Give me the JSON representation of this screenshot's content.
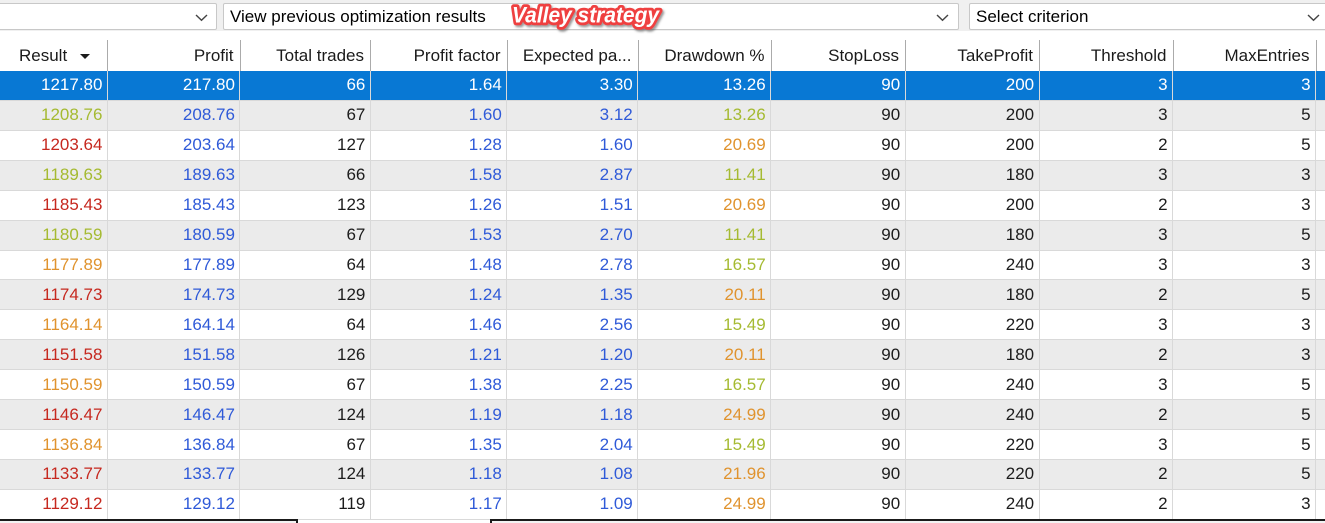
{
  "toolbar": {
    "combo_pass": {
      "value": ""
    },
    "combo_view": {
      "value": "View previous optimization results"
    },
    "combo_criterion": {
      "value": "Select criterion"
    }
  },
  "annotation": {
    "text": "Valley strategy",
    "fill": "#ffffff",
    "outline": "#ef4040"
  },
  "table": {
    "columns": [
      {
        "label": "Result",
        "sorted": "desc"
      },
      {
        "label": "Profit"
      },
      {
        "label": "Total trades"
      },
      {
        "label": "Profit factor"
      },
      {
        "label": "Expected pa..."
      },
      {
        "label": "Drawdown %"
      },
      {
        "label": "StopLoss"
      },
      {
        "label": "TakeProfit"
      },
      {
        "label": "Threshold"
      },
      {
        "label": "MaxEntries"
      },
      {
        "label": ""
      }
    ],
    "rows": [
      {
        "selected": true,
        "values": [
          "1217.80",
          "217.80",
          "66",
          "1.64",
          "3.30",
          "13.26",
          "90",
          "200",
          "3",
          "3"
        ],
        "result_color": "white",
        "drawdown_color": "white"
      },
      {
        "selected": false,
        "values": [
          "1208.76",
          "208.76",
          "67",
          "1.60",
          "3.12",
          "13.26",
          "90",
          "200",
          "3",
          "5"
        ],
        "result_color": "green",
        "drawdown_color": "green"
      },
      {
        "selected": false,
        "values": [
          "1203.64",
          "203.64",
          "127",
          "1.28",
          "1.60",
          "20.69",
          "90",
          "200",
          "2",
          "5"
        ],
        "result_color": "red",
        "drawdown_color": "orange"
      },
      {
        "selected": false,
        "values": [
          "1189.63",
          "189.63",
          "66",
          "1.58",
          "2.87",
          "11.41",
          "90",
          "180",
          "3",
          "3"
        ],
        "result_color": "green",
        "drawdown_color": "green"
      },
      {
        "selected": false,
        "values": [
          "1185.43",
          "185.43",
          "123",
          "1.26",
          "1.51",
          "20.69",
          "90",
          "200",
          "2",
          "3"
        ],
        "result_color": "red",
        "drawdown_color": "orange"
      },
      {
        "selected": false,
        "values": [
          "1180.59",
          "180.59",
          "67",
          "1.53",
          "2.70",
          "11.41",
          "90",
          "180",
          "3",
          "5"
        ],
        "result_color": "green",
        "drawdown_color": "green"
      },
      {
        "selected": false,
        "values": [
          "1177.89",
          "177.89",
          "64",
          "1.48",
          "2.78",
          "16.57",
          "90",
          "240",
          "3",
          "3"
        ],
        "result_color": "orange",
        "drawdown_color": "green"
      },
      {
        "selected": false,
        "values": [
          "1174.73",
          "174.73",
          "129",
          "1.24",
          "1.35",
          "20.11",
          "90",
          "180",
          "2",
          "5"
        ],
        "result_color": "red",
        "drawdown_color": "orange"
      },
      {
        "selected": false,
        "values": [
          "1164.14",
          "164.14",
          "64",
          "1.46",
          "2.56",
          "15.49",
          "90",
          "220",
          "3",
          "3"
        ],
        "result_color": "orange",
        "drawdown_color": "green"
      },
      {
        "selected": false,
        "values": [
          "1151.58",
          "151.58",
          "126",
          "1.21",
          "1.20",
          "20.11",
          "90",
          "180",
          "2",
          "3"
        ],
        "result_color": "red",
        "drawdown_color": "orange"
      },
      {
        "selected": false,
        "values": [
          "1150.59",
          "150.59",
          "67",
          "1.38",
          "2.25",
          "16.57",
          "90",
          "240",
          "3",
          "5"
        ],
        "result_color": "orange",
        "drawdown_color": "green"
      },
      {
        "selected": false,
        "values": [
          "1146.47",
          "146.47",
          "124",
          "1.19",
          "1.18",
          "24.99",
          "90",
          "240",
          "2",
          "5"
        ],
        "result_color": "red",
        "drawdown_color": "orange"
      },
      {
        "selected": false,
        "values": [
          "1136.84",
          "136.84",
          "67",
          "1.35",
          "2.04",
          "15.49",
          "90",
          "220",
          "3",
          "5"
        ],
        "result_color": "orange",
        "drawdown_color": "green"
      },
      {
        "selected": false,
        "values": [
          "1133.77",
          "133.77",
          "124",
          "1.18",
          "1.08",
          "21.96",
          "90",
          "220",
          "2",
          "5"
        ],
        "result_color": "red",
        "drawdown_color": "orange"
      },
      {
        "selected": false,
        "values": [
          "1129.12",
          "129.12",
          "119",
          "1.17",
          "1.09",
          "24.99",
          "90",
          "240",
          "2",
          "3"
        ],
        "result_color": "red",
        "drawdown_color": "orange"
      }
    ]
  },
  "colors": {
    "selected_bg": "#0878d4",
    "row_alt_bg": "#ebebeb",
    "green": "#a5ba31",
    "orange": "#e0932e",
    "red": "#c6281f",
    "blue": "#2f5ad8",
    "black": "#1c1c1c",
    "white": "#ffffff"
  }
}
